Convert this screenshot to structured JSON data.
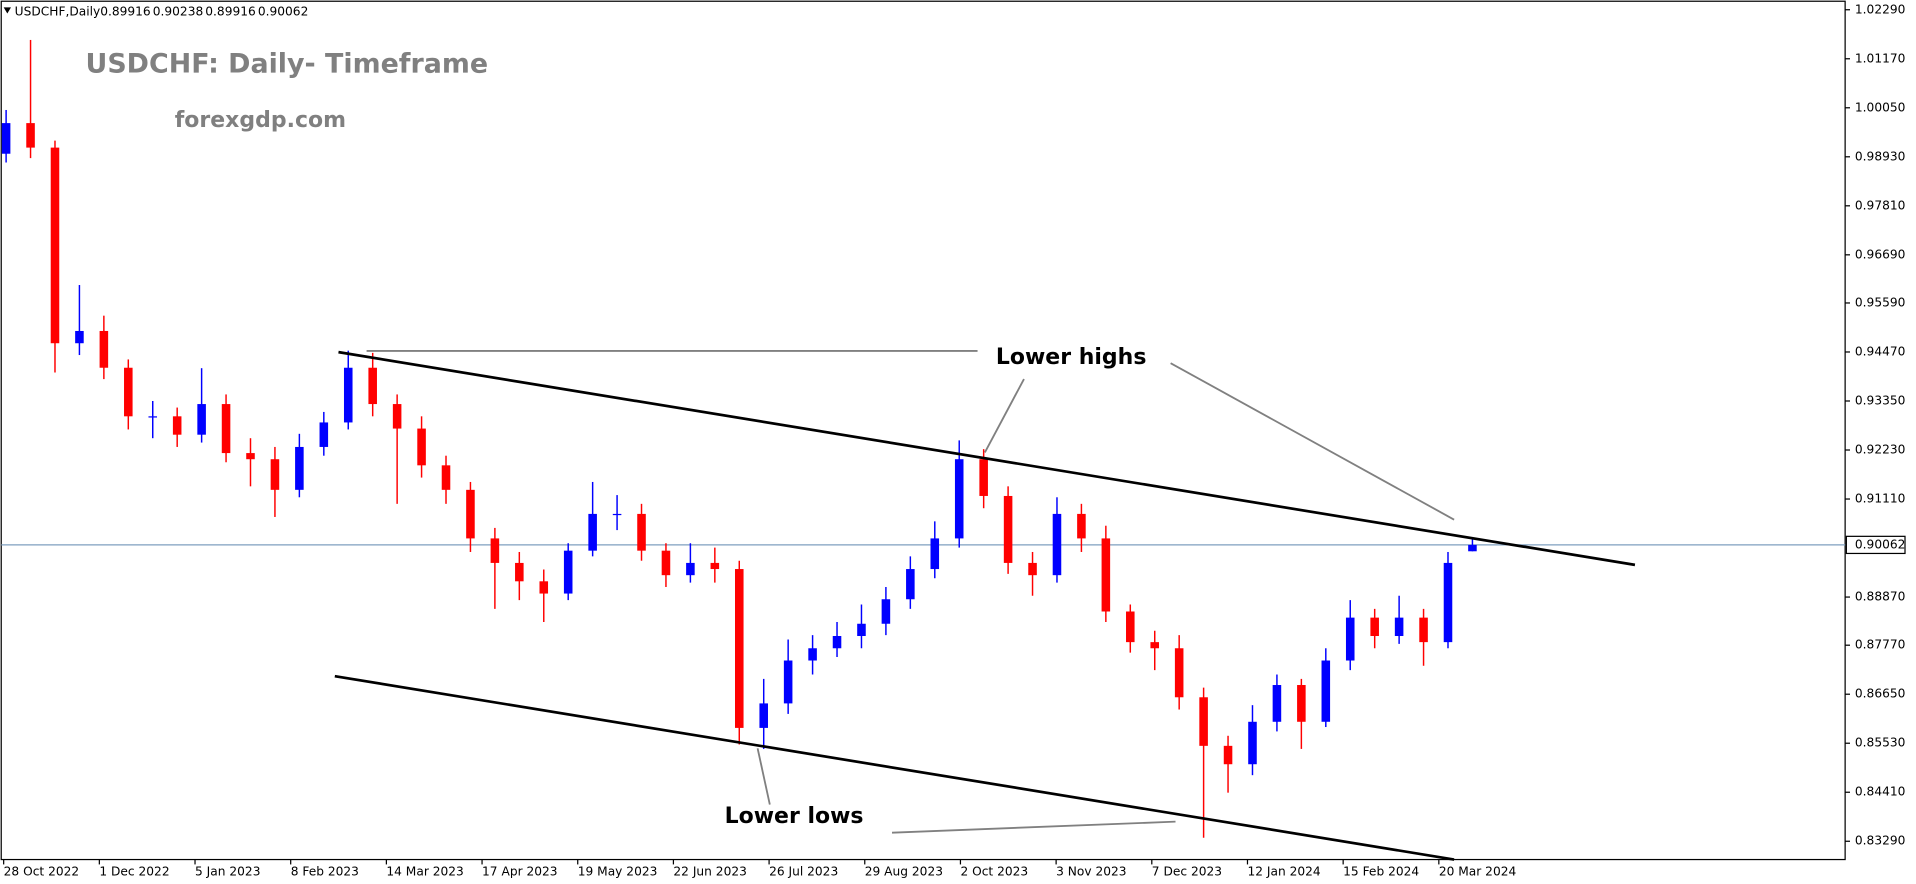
{
  "chart_data": {
    "type": "candlestick",
    "symbol": "USDCHF,Daily",
    "header_values": [
      0.89916,
      0.90238,
      0.89916,
      0.90062
    ],
    "title": "USDCHF: Daily- Timeframe",
    "subtitle": "forexgdp.com",
    "annotations": [
      "Lower highs",
      "Lower lows"
    ],
    "date_labels": [
      "28 Oct 2022",
      "1 Dec 2022",
      "5 Jan 2023",
      "8 Feb 2023",
      "14 Mar 2023",
      "17 Apr 2023",
      "19 May 2023",
      "22 Jun 2023",
      "26 Jul 2023",
      "29 Aug 2023",
      "2 Oct 2023",
      "3 Nov 2023",
      "7 Dec 2023",
      "12 Jan 2024",
      "15 Feb 2024",
      "20 Mar 2024"
    ],
    "open": [
      0.99,
      0.997,
      0.9914,
      0.9467,
      0.9495,
      0.9411,
      0.93,
      0.93,
      0.9258,
      0.9328,
      0.9216,
      0.9202,
      0.9132,
      0.923,
      0.9286,
      0.9411,
      0.9328,
      0.9272,
      0.9188,
      0.9132,
      0.9021,
      0.8965,
      0.8923,
      0.8895,
      0.8993,
      0.9077,
      0.9077,
      0.8993,
      0.8937,
      0.8965,
      0.8951,
      0.8588,
      0.8644,
      0.8742,
      0.877,
      0.8798,
      0.8826,
      0.8882,
      0.8951,
      0.9021,
      0.9202,
      0.9118,
      0.8965,
      0.8937,
      0.9077,
      0.9021,
      0.8854,
      0.8784,
      0.877,
      0.8658,
      0.8547,
      0.8505,
      0.8602,
      0.8686,
      0.8602,
      0.8742,
      0.884,
      0.8798,
      0.884,
      0.8784,
      0.89916
    ],
    "high": [
      1.0,
      1.016,
      0.993,
      0.96,
      0.953,
      0.943,
      0.9335,
      0.932,
      0.941,
      0.935,
      0.925,
      0.923,
      0.926,
      0.931,
      0.945,
      0.9445,
      0.935,
      0.93,
      0.921,
      0.915,
      0.9045,
      0.899,
      0.895,
      0.901,
      0.915,
      0.912,
      0.91,
      0.901,
      0.901,
      0.9,
      0.897,
      0.87,
      0.879,
      0.88,
      0.883,
      0.887,
      0.891,
      0.898,
      0.906,
      0.9245,
      0.9225,
      0.914,
      0.899,
      0.9115,
      0.91,
      0.905,
      0.887,
      0.881,
      0.88,
      0.868,
      0.857,
      0.864,
      0.871,
      0.87,
      0.877,
      0.888,
      0.886,
      0.889,
      0.886,
      0.899,
      0.90238
    ],
    "low": [
      0.988,
      0.989,
      0.94,
      0.944,
      0.9385,
      0.927,
      0.925,
      0.923,
      0.924,
      0.9195,
      0.914,
      0.907,
      0.9115,
      0.921,
      0.927,
      0.93,
      0.91,
      0.916,
      0.91,
      0.899,
      0.886,
      0.888,
      0.883,
      0.888,
      0.898,
      0.904,
      0.897,
      0.891,
      0.892,
      0.892,
      0.855,
      0.854,
      0.862,
      0.871,
      0.875,
      0.877,
      0.88,
      0.886,
      0.893,
      0.9,
      0.909,
      0.894,
      0.889,
      0.892,
      0.899,
      0.883,
      0.876,
      0.872,
      0.863,
      0.8337,
      0.844,
      0.848,
      0.858,
      0.854,
      0.859,
      0.872,
      0.877,
      0.878,
      0.873,
      0.877,
      0.89916
    ],
    "close": [
      0.997,
      0.9914,
      0.9467,
      0.9495,
      0.9411,
      0.93,
      0.93,
      0.9258,
      0.9328,
      0.9216,
      0.9202,
      0.9132,
      0.923,
      0.9286,
      0.9411,
      0.9328,
      0.9272,
      0.9188,
      0.9132,
      0.9021,
      0.8965,
      0.8923,
      0.8895,
      0.8993,
      0.9077,
      0.9077,
      0.8993,
      0.8937,
      0.8965,
      0.8951,
      0.8588,
      0.8644,
      0.8742,
      0.877,
      0.8798,
      0.8826,
      0.8882,
      0.8951,
      0.9021,
      0.9202,
      0.9118,
      0.8965,
      0.8937,
      0.9077,
      0.9021,
      0.8854,
      0.8784,
      0.877,
      0.8658,
      0.8547,
      0.8505,
      0.8602,
      0.8686,
      0.8602,
      0.8742,
      0.884,
      0.8798,
      0.884,
      0.8784,
      0.8965,
      0.90062
    ],
    "up_color": "#0000ff",
    "down_color": "#ff0000",
    "current_price": 0.90062,
    "ylim": [
      0.82872,
      1.02485
    ],
    "yticks": [
      {
        "value": 1.0229,
        "label": "1.02290"
      },
      {
        "value": 1.0117,
        "label": "1.01170"
      },
      {
        "value": 1.0005,
        "label": "1.00050"
      },
      {
        "value": 0.9893,
        "label": "0.98930"
      },
      {
        "value": 0.9781,
        "label": "0.97810"
      },
      {
        "value": 0.9669,
        "label": "0.96690"
      },
      {
        "value": 0.9559,
        "label": "0.95590"
      },
      {
        "value": 0.9447,
        "label": "0.94470"
      },
      {
        "value": 0.9335,
        "label": "0.93350"
      },
      {
        "value": 0.9223,
        "label": "0.92230"
      },
      {
        "value": 0.9111,
        "label": "0.91110"
      },
      {
        "value": 0.8887,
        "label": "0.88870"
      },
      {
        "value": 0.8777,
        "label": "0.87770"
      },
      {
        "value": 0.8665,
        "label": "0.86650"
      },
      {
        "value": 0.8553,
        "label": "0.85530"
      },
      {
        "value": 0.8441,
        "label": "0.84410"
      },
      {
        "value": 0.8329,
        "label": "0.83290"
      }
    ],
    "grid": false
  }
}
